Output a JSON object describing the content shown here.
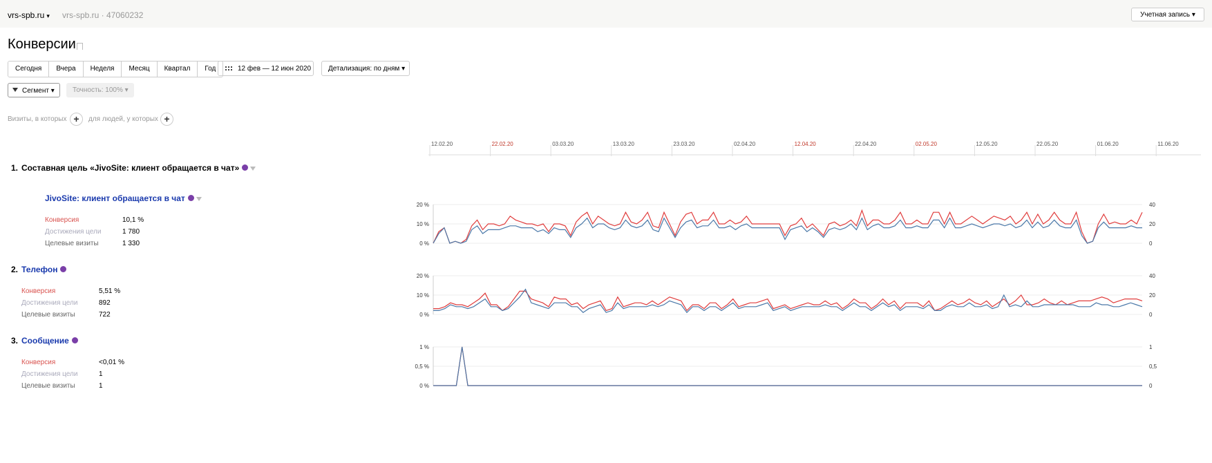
{
  "header": {
    "site": "vrs-spb.ru",
    "site_sub": "vrs-spb.ru · 47060232",
    "account": "Учетная запись"
  },
  "page_title": "Конверсии",
  "periods": [
    "Сегодня",
    "Вчера",
    "Неделя",
    "Месяц",
    "Квартал",
    "Год"
  ],
  "date_range": "12 фев — 12 июн 2020",
  "detail": "Детализация: по дням",
  "segment": "Сегмент",
  "accuracy": "Точность: 100%",
  "segment_bar": {
    "visits_text": "Визиты, в которых",
    "people_text": "для людей, у которых"
  },
  "timeline": {
    "ticks": [
      {
        "label": "12.02.20",
        "weekend": false
      },
      {
        "label": "22.02.20",
        "weekend": true
      },
      {
        "label": "03.03.20",
        "weekend": false
      },
      {
        "label": "13.03.20",
        "weekend": false
      },
      {
        "label": "23.03.20",
        "weekend": false
      },
      {
        "label": "02.04.20",
        "weekend": false
      },
      {
        "label": "12.04.20",
        "weekend": true
      },
      {
        "label": "22.04.20",
        "weekend": false
      },
      {
        "label": "02.05.20",
        "weekend": true
      },
      {
        "label": "12.05.20",
        "weekend": false
      },
      {
        "label": "22.05.20",
        "weekend": false
      },
      {
        "label": "01.06.20",
        "weekend": false
      },
      {
        "label": "11.06.20",
        "weekend": false
      }
    ]
  },
  "goals": [
    {
      "number": "1.",
      "title": "Составная цель «JivoSite: клиент обращается в чат»",
      "step": "JivoSite: клиент обращается в чат",
      "metrics": [
        {
          "label": "Конверсия",
          "value": "10,1 %"
        },
        {
          "label": "Достижения цели",
          "value": "1 780"
        },
        {
          "label": "Целевые визиты",
          "value": "1 330"
        }
      ]
    },
    {
      "number": "2.",
      "title": "Телефон",
      "metrics": [
        {
          "label": "Конверсия",
          "value": "5,51 %"
        },
        {
          "label": "Достижения цели",
          "value": "892"
        },
        {
          "label": "Целевые визиты",
          "value": "722"
        }
      ]
    },
    {
      "number": "3.",
      "title": "Сообщение",
      "metrics": [
        {
          "label": "Конверсия",
          "value": "<0,01 %"
        },
        {
          "label": "Достижения цели",
          "value": "1"
        },
        {
          "label": "Целевые визиты",
          "value": "1"
        }
      ]
    }
  ],
  "colors": {
    "red": "#e03c3c",
    "blue": "#4a78a8",
    "link": "#1a3aad",
    "weekend": "#c0392b"
  },
  "chart_data": [
    {
      "type": "line",
      "x_start": "12.02.20",
      "x_end": "12.06.20",
      "y_left_ticks": [
        "20 %",
        "10 %",
        "0 %"
      ],
      "y_right_ticks": [
        "40",
        "20",
        "0"
      ],
      "ylim_left": [
        0,
        20
      ],
      "ylim_right": [
        0,
        40
      ],
      "series": [
        {
          "color": "#e03c3c",
          "values": [
            0,
            6,
            8,
            0,
            1,
            0,
            2,
            9,
            12,
            7,
            10,
            10,
            9,
            10,
            14,
            12,
            11,
            10,
            10,
            9,
            10,
            6,
            10,
            10,
            9,
            4,
            11,
            14,
            16,
            10,
            14,
            12,
            10,
            9,
            10,
            16,
            11,
            10,
            12,
            16,
            9,
            8,
            16,
            10,
            4,
            11,
            15,
            16,
            10,
            12,
            12,
            16,
            10,
            10,
            12,
            10,
            11,
            14,
            10,
            10,
            10,
            10,
            10,
            10,
            4,
            9,
            10,
            13,
            8,
            10,
            7,
            4,
            10,
            11,
            9,
            10,
            12,
            9,
            17,
            9,
            12,
            12,
            10,
            10,
            12,
            16,
            10,
            10,
            12,
            10,
            10,
            16,
            16,
            10,
            16,
            10,
            10,
            12,
            14,
            12,
            10,
            12,
            14,
            13,
            12,
            14,
            10,
            12,
            16,
            10,
            15,
            10,
            12,
            16,
            12,
            10,
            10,
            16,
            6,
            0,
            1,
            10,
            15,
            10,
            11,
            10,
            10,
            12,
            10,
            16
          ]
        },
        {
          "color": "#4a78a8",
          "values": [
            0,
            5,
            8,
            0,
            1,
            0,
            1,
            7,
            9,
            5,
            7,
            7,
            7,
            8,
            9,
            9,
            8,
            8,
            8,
            6,
            7,
            5,
            8,
            7,
            7,
            3,
            8,
            10,
            13,
            8,
            10,
            10,
            8,
            7,
            8,
            12,
            9,
            8,
            9,
            12,
            7,
            6,
            13,
            8,
            3,
            8,
            11,
            12,
            8,
            9,
            9,
            12,
            8,
            8,
            9,
            7,
            9,
            10,
            8,
            8,
            8,
            8,
            8,
            8,
            2,
            7,
            8,
            9,
            6,
            8,
            6,
            3,
            7,
            8,
            7,
            8,
            10,
            7,
            13,
            7,
            9,
            10,
            8,
            8,
            9,
            12,
            8,
            8,
            9,
            8,
            8,
            12,
            12,
            8,
            13,
            8,
            8,
            9,
            10,
            9,
            8,
            9,
            10,
            10,
            9,
            10,
            8,
            9,
            12,
            8,
            11,
            8,
            9,
            12,
            9,
            8,
            8,
            12,
            4,
            0,
            1,
            8,
            11,
            8,
            8,
            8,
            8,
            9,
            8,
            8
          ]
        }
      ]
    },
    {
      "type": "line",
      "x_start": "12.02.20",
      "x_end": "12.06.20",
      "y_left_ticks": [
        "20 %",
        "10 %",
        "0 %"
      ],
      "y_right_ticks": [
        "40",
        "20",
        "0"
      ],
      "ylim_left": [
        0,
        20
      ],
      "ylim_right": [
        0,
        40
      ],
      "series": [
        {
          "color": "#e03c3c",
          "values": [
            3,
            3,
            4,
            6,
            5,
            5,
            4,
            6,
            8,
            11,
            5,
            5,
            2,
            4,
            8,
            12,
            12,
            8,
            7,
            6,
            4,
            9,
            8,
            8,
            5,
            6,
            3,
            5,
            6,
            7,
            2,
            3,
            9,
            4,
            5,
            6,
            6,
            5,
            7,
            5,
            7,
            9,
            8,
            7,
            2,
            5,
            5,
            3,
            6,
            6,
            3,
            5,
            8,
            4,
            5,
            6,
            6,
            7,
            8,
            3,
            4,
            5,
            3,
            4,
            5,
            6,
            5,
            5,
            7,
            5,
            6,
            3,
            5,
            8,
            6,
            6,
            3,
            5,
            8,
            5,
            7,
            3,
            6,
            6,
            6,
            4,
            7,
            2,
            3,
            5,
            7,
            5,
            6,
            8,
            6,
            5,
            7,
            4,
            6,
            8,
            5,
            7,
            10,
            5,
            5,
            6,
            8,
            6,
            5,
            7,
            5,
            6,
            7,
            7,
            7,
            8,
            9,
            8,
            6,
            7,
            8,
            8,
            8,
            7
          ]
        },
        {
          "color": "#4a78a8",
          "values": [
            2,
            2,
            3,
            5,
            4,
            4,
            3,
            4,
            6,
            8,
            4,
            4,
            2,
            3,
            6,
            9,
            13,
            6,
            5,
            4,
            3,
            6,
            6,
            6,
            4,
            4,
            1,
            3,
            4,
            5,
            1,
            2,
            6,
            3,
            4,
            4,
            4,
            4,
            5,
            4,
            5,
            7,
            6,
            5,
            1,
            4,
            4,
            2,
            4,
            4,
            2,
            4,
            6,
            3,
            4,
            4,
            4,
            5,
            6,
            2,
            3,
            4,
            2,
            3,
            4,
            4,
            4,
            4,
            5,
            4,
            4,
            2,
            4,
            6,
            4,
            4,
            2,
            4,
            6,
            4,
            5,
            2,
            4,
            4,
            4,
            3,
            5,
            2,
            2,
            4,
            5,
            4,
            4,
            6,
            4,
            4,
            5,
            3,
            4,
            10,
            4,
            5,
            4,
            7,
            4,
            4,
            5,
            5,
            5,
            5,
            5,
            5,
            4,
            4,
            4,
            6,
            5,
            5,
            4,
            4,
            5,
            6,
            5,
            4
          ]
        }
      ]
    },
    {
      "type": "line",
      "x_start": "12.02.20",
      "x_end": "12.06.20",
      "y_left_ticks": [
        "1 %",
        "0,5 %",
        "0 %"
      ],
      "y_right_ticks": [
        "1",
        "0,5",
        "0"
      ],
      "ylim_left": [
        0,
        1
      ],
      "ylim_right": [
        0,
        1
      ],
      "series": [
        {
          "color": "#e03c3c",
          "values": [
            0,
            0,
            0,
            0,
            0,
            1,
            0,
            0,
            0,
            0,
            0,
            0,
            0,
            0,
            0,
            0,
            0,
            0,
            0,
            0,
            0,
            0,
            0,
            0,
            0,
            0,
            0,
            0,
            0,
            0,
            0,
            0,
            0,
            0,
            0,
            0,
            0,
            0,
            0,
            0,
            0,
            0,
            0,
            0,
            0,
            0,
            0,
            0,
            0,
            0,
            0,
            0,
            0,
            0,
            0,
            0,
            0,
            0,
            0,
            0,
            0,
            0,
            0,
            0,
            0,
            0,
            0,
            0,
            0,
            0,
            0,
            0,
            0,
            0,
            0,
            0,
            0,
            0,
            0,
            0,
            0,
            0,
            0,
            0,
            0,
            0,
            0,
            0,
            0,
            0,
            0,
            0,
            0,
            0,
            0,
            0,
            0,
            0,
            0,
            0,
            0,
            0,
            0,
            0,
            0,
            0,
            0,
            0,
            0,
            0,
            0,
            0,
            0,
            0,
            0,
            0,
            0,
            0,
            0,
            0,
            0,
            0,
            0,
            0
          ]
        },
        {
          "color": "#4a78a8",
          "values": [
            0,
            0,
            0,
            0,
            0,
            1,
            0,
            0,
            0,
            0,
            0,
            0,
            0,
            0,
            0,
            0,
            0,
            0,
            0,
            0,
            0,
            0,
            0,
            0,
            0,
            0,
            0,
            0,
            0,
            0,
            0,
            0,
            0,
            0,
            0,
            0,
            0,
            0,
            0,
            0,
            0,
            0,
            0,
            0,
            0,
            0,
            0,
            0,
            0,
            0,
            0,
            0,
            0,
            0,
            0,
            0,
            0,
            0,
            0,
            0,
            0,
            0,
            0,
            0,
            0,
            0,
            0,
            0,
            0,
            0,
            0,
            0,
            0,
            0,
            0,
            0,
            0,
            0,
            0,
            0,
            0,
            0,
            0,
            0,
            0,
            0,
            0,
            0,
            0,
            0,
            0,
            0,
            0,
            0,
            0,
            0,
            0,
            0,
            0,
            0,
            0,
            0,
            0,
            0,
            0,
            0,
            0,
            0,
            0,
            0,
            0,
            0,
            0,
            0,
            0,
            0,
            0,
            0,
            0,
            0,
            0,
            0,
            0,
            0
          ]
        }
      ]
    }
  ]
}
